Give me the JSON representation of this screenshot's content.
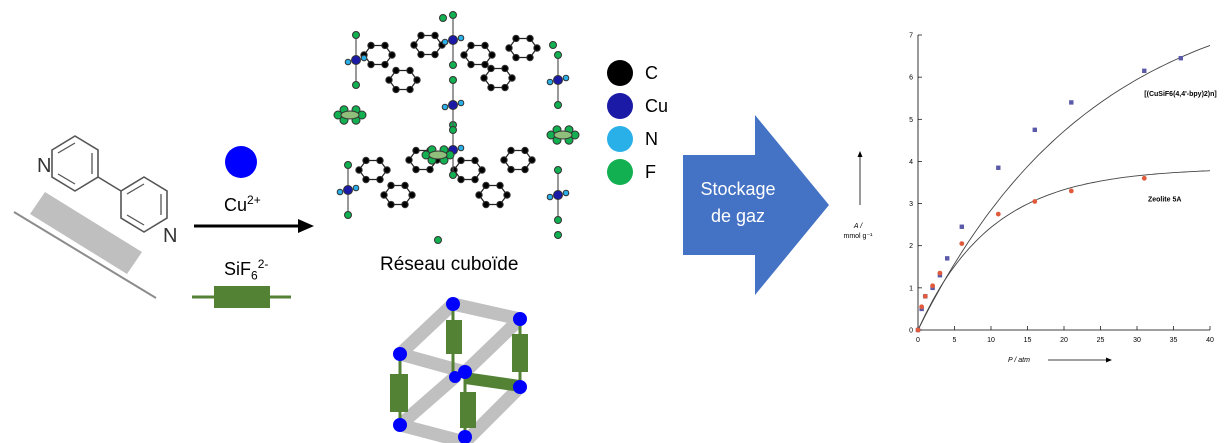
{
  "reagents": {
    "cu_label": "Cu",
    "cu_charge": "2+",
    "sif_label": "SiF",
    "sif_sub": "6",
    "sif_charge": "2-"
  },
  "ligand": {
    "n_top": "N",
    "n_bottom": "N"
  },
  "framework": {
    "caption": "Réseau cuboïde"
  },
  "legend": [
    {
      "label": "C",
      "color": "#000000"
    },
    {
      "label": "Cu",
      "color": "#1a1aa6"
    },
    {
      "label": "N",
      "color": "#29b0e8"
    },
    {
      "label": "F",
      "color": "#12b050"
    }
  ],
  "arrow": {
    "line1": "Stockage",
    "line2": "de gaz",
    "color": "#4472c4"
  },
  "colors": {
    "rod_grey": "#bfbfbf",
    "rod_green": "#548235",
    "node_blue": "#0000ff"
  },
  "chart_data": {
    "type": "scatter",
    "xlabel": "P / atm",
    "ylabel_line1": "A /",
    "ylabel_line2": "mmol g⁻¹",
    "xlim": [
      0,
      40
    ],
    "ylim": [
      0,
      7
    ],
    "xticks": [
      "0",
      "5",
      "10",
      "15",
      "20",
      "25",
      "30",
      "35",
      "40"
    ],
    "yticks": [
      "0",
      "1",
      "2",
      "3",
      "4",
      "5",
      "6",
      "7"
    ],
    "series": [
      {
        "name": "[(CuSiF6(4,4'-bpy)2)n]",
        "color": "#5a5aa8",
        "x": [
          0,
          0.5,
          1,
          2,
          3,
          4,
          6,
          11,
          16,
          21,
          31,
          36
        ],
        "y": [
          0,
          0.5,
          0.8,
          1.0,
          1.3,
          1.7,
          2.45,
          3.85,
          4.75,
          5.4,
          6.15,
          6.45
        ]
      },
      {
        "name": "Zeolite 5A",
        "color": "#e05a3c",
        "x": [
          0,
          0.5,
          1,
          2,
          3,
          6,
          11,
          16,
          21,
          31
        ],
        "y": [
          0,
          0.55,
          0.8,
          1.05,
          1.35,
          2.05,
          2.75,
          3.05,
          3.3,
          3.6
        ]
      }
    ],
    "fit_curves": [
      {
        "asymptote": 8.3,
        "rate": 0.042
      },
      {
        "asymptote": 3.85,
        "rate": 0.1
      }
    ]
  }
}
